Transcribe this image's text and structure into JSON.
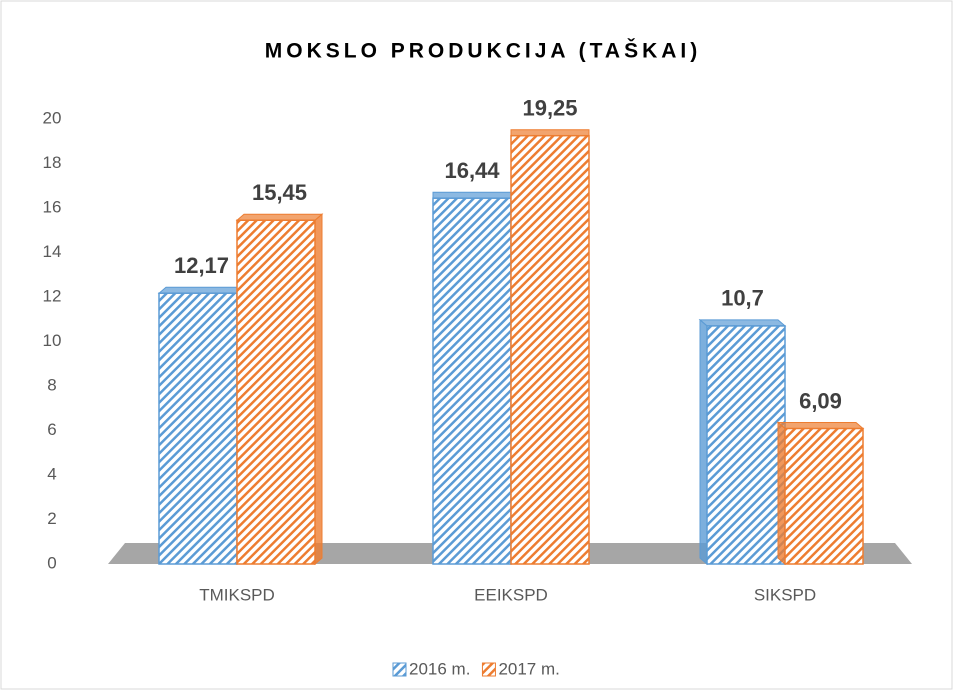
{
  "chart_data": {
    "type": "bar",
    "title": "MOKSLO PRODUKCIJA (TAŠKAI)",
    "categories": [
      "TMIKSPD",
      "EEIKSPD",
      "SIKSPD"
    ],
    "series": [
      {
        "name": "2016 m.",
        "color": "#5b9bd5",
        "values": [
          12.17,
          16.44,
          10.7
        ],
        "value_labels": [
          "12,17",
          "16,44",
          "10,7"
        ]
      },
      {
        "name": "2017 m.",
        "color": "#ed7d31",
        "values": [
          15.45,
          19.25,
          6.09
        ],
        "value_labels": [
          "15,45",
          "19,25",
          "6,09"
        ]
      }
    ],
    "ylim": [
      0,
      20
    ],
    "yticks": [
      0,
      2,
      4,
      6,
      8,
      10,
      12,
      14,
      16,
      18,
      20
    ],
    "legend": "bottom"
  }
}
